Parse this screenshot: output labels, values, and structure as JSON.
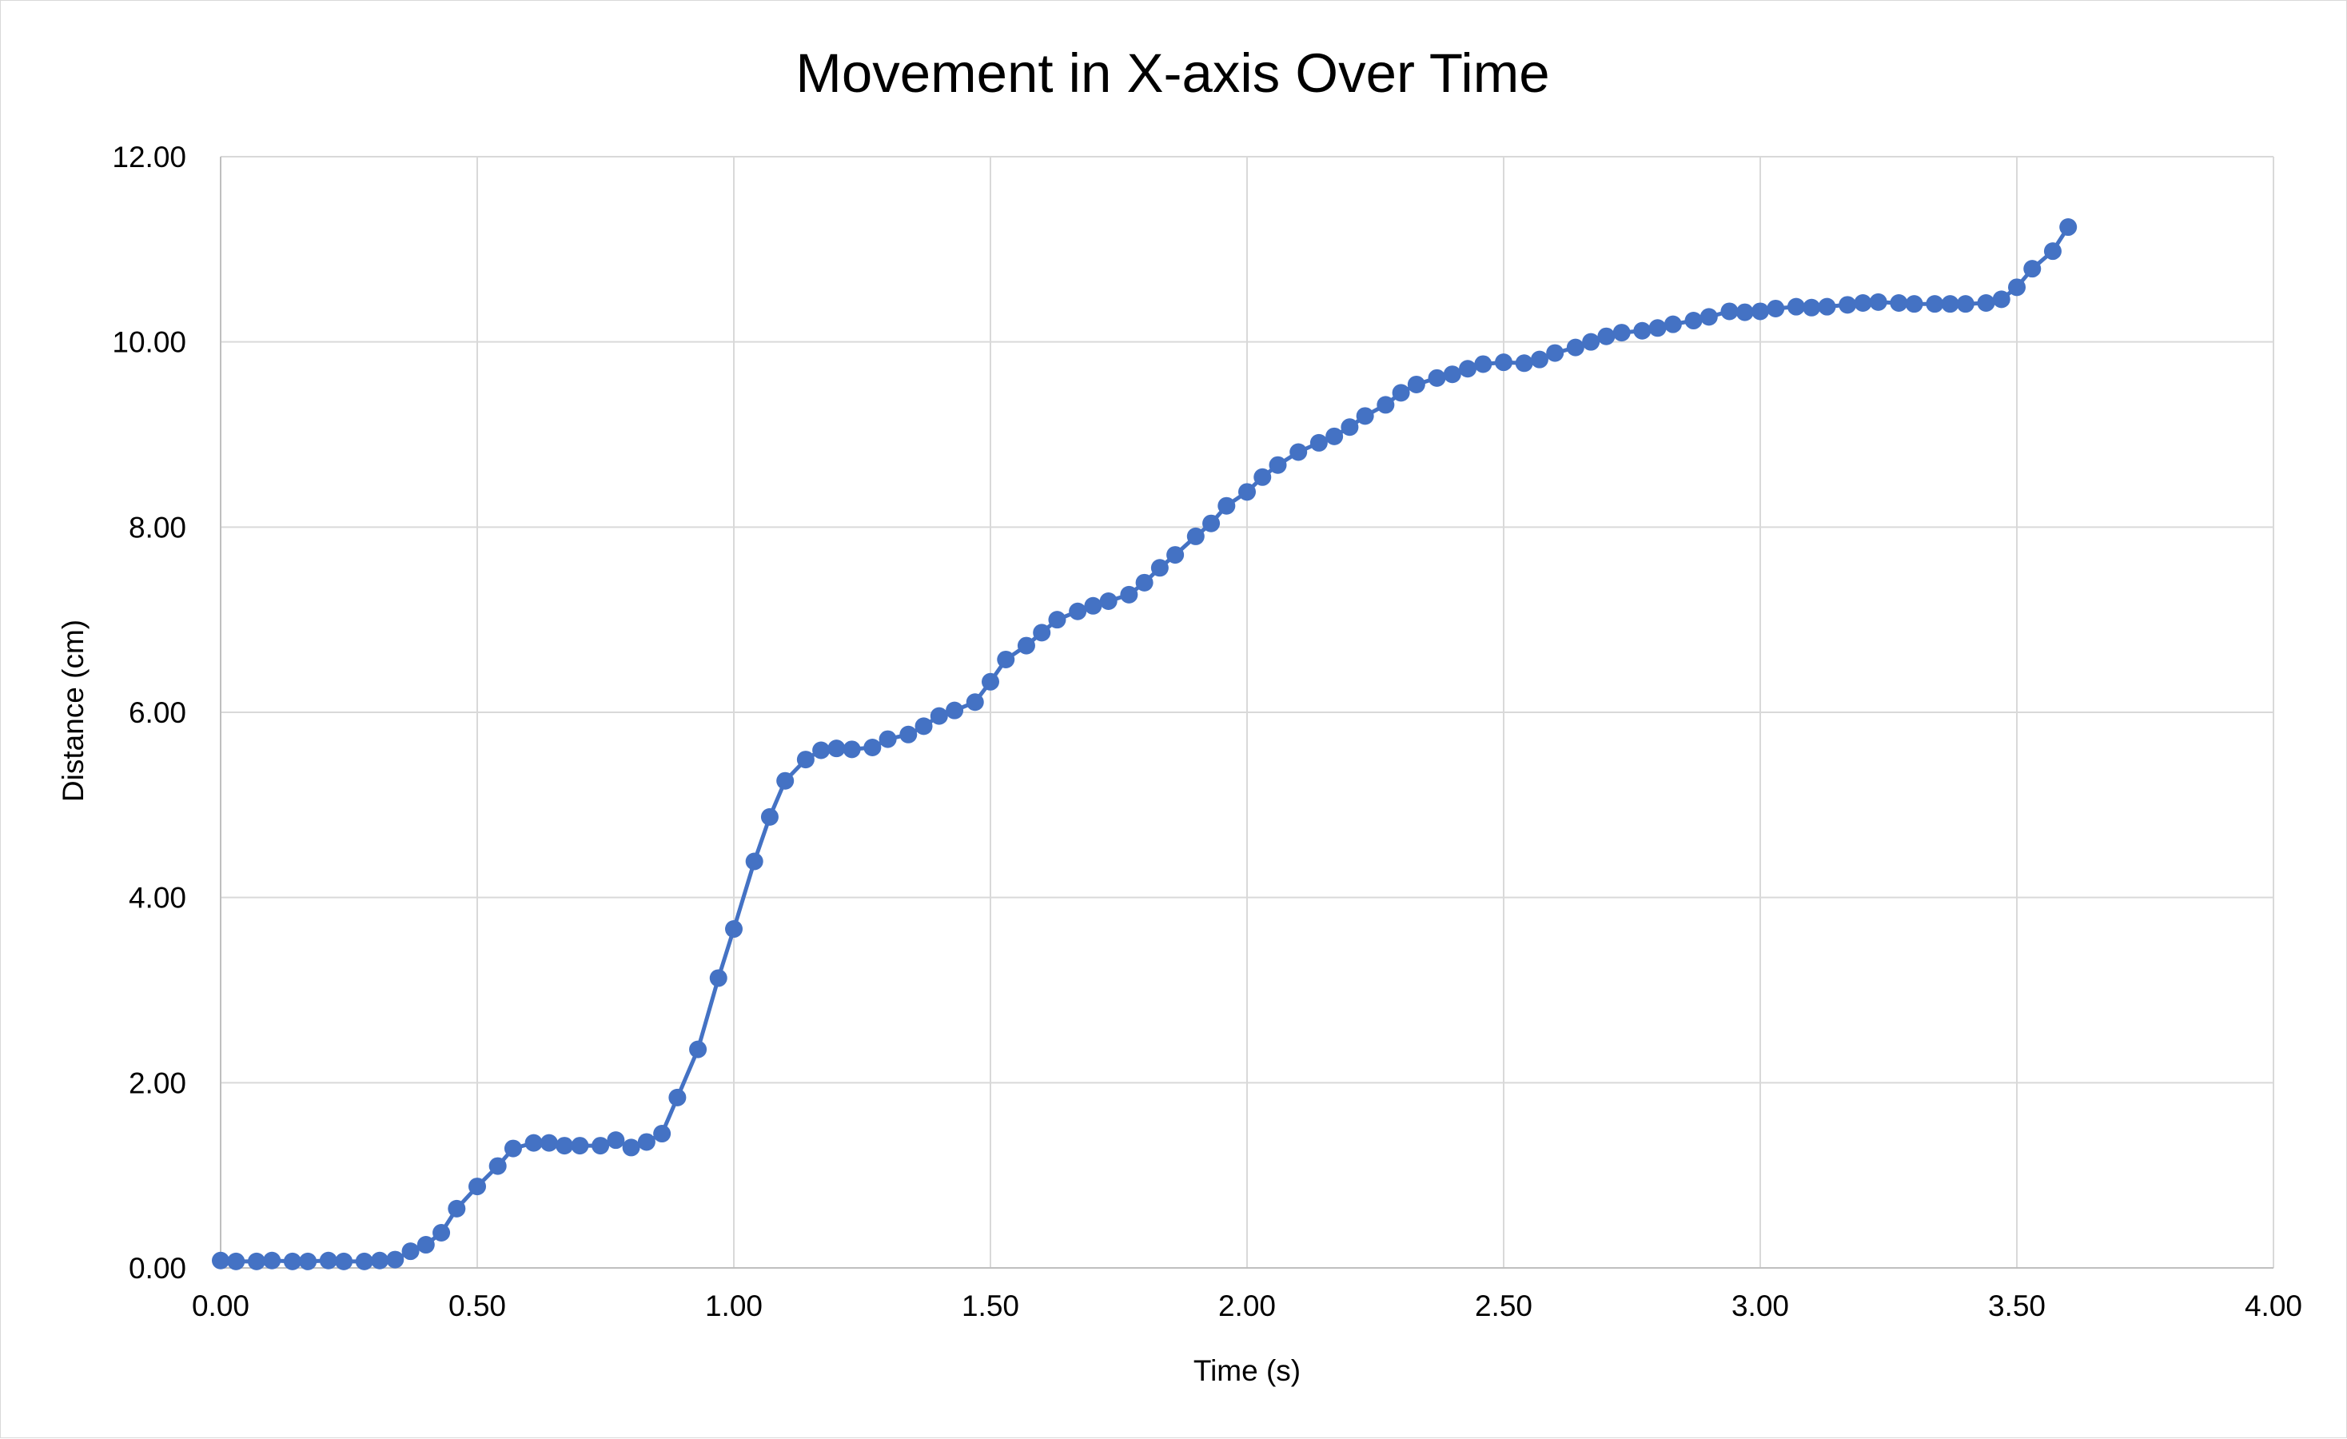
{
  "chart_data": {
    "type": "line",
    "title": "Movement in X-axis Over Time",
    "xlabel": "Time (s)",
    "ylabel": "Distance (cm)",
    "xlim": [
      0,
      4
    ],
    "ylim": [
      0,
      12
    ],
    "x_ticks": [
      "0.00",
      "0.50",
      "1.00",
      "1.50",
      "2.00",
      "2.50",
      "3.00",
      "3.50",
      "4.00"
    ],
    "y_ticks": [
      "0.00",
      "2.00",
      "4.00",
      "6.00",
      "8.00",
      "10.00",
      "12.00"
    ],
    "grid": true,
    "legend": "none",
    "series": [
      {
        "color": "#4472c4",
        "markers": true,
        "x": [
          0.0,
          0.03,
          0.07,
          0.1,
          0.14,
          0.17,
          0.21,
          0.24,
          0.28,
          0.31,
          0.34,
          0.37,
          0.4,
          0.43,
          0.46,
          0.5,
          0.54,
          0.57,
          0.61,
          0.64,
          0.67,
          0.7,
          0.74,
          0.77,
          0.8,
          0.83,
          0.86,
          0.89,
          0.93,
          0.97,
          1.0,
          1.04,
          1.07,
          1.1,
          1.14,
          1.17,
          1.2,
          1.23,
          1.27,
          1.3,
          1.34,
          1.37,
          1.4,
          1.43,
          1.47,
          1.5,
          1.53,
          1.57,
          1.6,
          1.63,
          1.67,
          1.7,
          1.73,
          1.77,
          1.8,
          1.83,
          1.86,
          1.9,
          1.93,
          1.96,
          2.0,
          2.03,
          2.06,
          2.1,
          2.14,
          2.17,
          2.2,
          2.23,
          2.27,
          2.3,
          2.33,
          2.37,
          2.4,
          2.43,
          2.46,
          2.5,
          2.54,
          2.57,
          2.6,
          2.64,
          2.67,
          2.7,
          2.73,
          2.77,
          2.8,
          2.83,
          2.87,
          2.9,
          2.94,
          2.97,
          3.0,
          3.03,
          3.07,
          3.1,
          3.13,
          3.17,
          3.2,
          3.23,
          3.27,
          3.3,
          3.34,
          3.37,
          3.4,
          3.44,
          3.47,
          3.5,
          3.53,
          3.57,
          3.6
        ],
        "y": [
          0.08,
          0.07,
          0.07,
          0.08,
          0.07,
          0.07,
          0.08,
          0.07,
          0.07,
          0.08,
          0.09,
          0.18,
          0.25,
          0.38,
          0.64,
          0.88,
          1.1,
          1.29,
          1.35,
          1.35,
          1.32,
          1.32,
          1.32,
          1.38,
          1.3,
          1.36,
          1.45,
          1.84,
          2.36,
          3.13,
          3.66,
          4.39,
          4.87,
          5.26,
          5.49,
          5.59,
          5.61,
          5.6,
          5.62,
          5.71,
          5.76,
          5.85,
          5.96,
          6.02,
          6.11,
          6.33,
          6.57,
          6.72,
          6.86,
          7.0,
          7.09,
          7.15,
          7.2,
          7.27,
          7.4,
          7.56,
          7.7,
          7.9,
          8.04,
          8.23,
          8.38,
          8.54,
          8.67,
          8.81,
          8.91,
          8.98,
          9.08,
          9.2,
          9.32,
          9.45,
          9.54,
          9.61,
          9.65,
          9.71,
          9.76,
          9.78,
          9.77,
          9.81,
          9.88,
          9.94,
          10.0,
          10.06,
          10.1,
          10.12,
          10.15,
          10.19,
          10.23,
          10.27,
          10.33,
          10.32,
          10.33,
          10.36,
          10.38,
          10.37,
          10.38,
          10.4,
          10.42,
          10.43,
          10.42,
          10.41,
          10.41,
          10.41,
          10.41,
          10.42,
          10.46,
          10.59,
          10.79,
          10.98,
          11.24
        ]
      }
    ]
  }
}
